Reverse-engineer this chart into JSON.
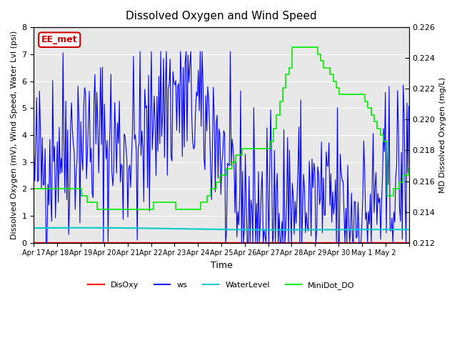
{
  "title": "Dissolved Oxygen and Wind Speed",
  "xlabel": "Time",
  "ylabel_left": "Dissolved Oxygen (mV), Wind Speed, Water Lvl (psi)",
  "ylabel_right": "MD Dissolved Oxygen (mg/L)",
  "annotation": "EE_met",
  "ylim_left": [
    0.0,
    8.0
  ],
  "ylim_right": [
    0.212,
    0.226
  ],
  "yticks_left": [
    0.0,
    1.0,
    2.0,
    3.0,
    4.0,
    5.0,
    6.0,
    7.0,
    8.0
  ],
  "yticks_right": [
    0.212,
    0.214,
    0.216,
    0.218,
    0.22,
    0.222,
    0.224,
    0.226
  ],
  "xtick_labels": [
    "Apr 17",
    "Apr 18",
    "Apr 19",
    "Apr 20",
    "Apr 21",
    "Apr 22",
    "Apr 23",
    "Apr 24",
    "Apr 25",
    "Apr 26",
    "Apr 27",
    "Apr 28",
    "Apr 29",
    "Apr 30",
    "May 1",
    "May 2"
  ],
  "background_color": "#e8e8e8",
  "legend_labels": [
    "DisOxy",
    "ws",
    "WaterLevel",
    "MiniDot_DO"
  ],
  "legend_colors": [
    "#ff0000",
    "#0000ff",
    "#00cccc",
    "#00ee00"
  ],
  "series_colors": {
    "DisOxy": "#ff0000",
    "ws": "#0000ff",
    "WaterLevel": "#00cccc",
    "MiniDot_DO": "#00ee00"
  }
}
